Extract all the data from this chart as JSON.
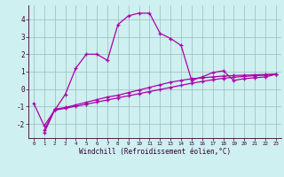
{
  "background_color": "#cff0f0",
  "grid_color": "#99bbbb",
  "line_color": "#aa00aa",
  "xlabel": "Windchill (Refroidissement éolien,°C)",
  "x_ticks": [
    0,
    1,
    2,
    3,
    4,
    5,
    6,
    7,
    8,
    9,
    10,
    11,
    12,
    13,
    14,
    15,
    16,
    17,
    18,
    19,
    20,
    21,
    22,
    23
  ],
  "y_ticks": [
    -2,
    -1,
    0,
    1,
    2,
    3,
    4
  ],
  "ylim": [
    -2.8,
    4.8
  ],
  "xlim": [
    -0.5,
    23.5
  ],
  "series1_x": [
    0,
    1,
    2,
    3,
    4,
    5,
    6,
    7,
    8,
    9,
    10,
    11,
    12,
    13,
    14,
    15,
    16,
    17,
    18,
    19,
    20,
    21,
    22,
    23
  ],
  "series1_y": [
    -0.8,
    -2.1,
    -1.2,
    -0.3,
    1.2,
    2.0,
    2.0,
    1.65,
    3.7,
    4.2,
    4.35,
    4.35,
    3.2,
    2.9,
    2.5,
    0.5,
    0.7,
    0.95,
    1.05,
    0.5,
    0.6,
    0.65,
    0.7,
    0.85
  ],
  "series2_x": [
    1,
    2,
    3,
    4,
    5,
    6,
    7,
    8,
    9,
    10,
    11,
    12,
    13,
    14,
    15,
    16,
    17,
    18,
    19,
    20,
    21,
    22,
    23
  ],
  "series2_y": [
    -2.35,
    -1.15,
    -1.05,
    -0.9,
    -0.75,
    -0.6,
    -0.45,
    -0.35,
    -0.2,
    -0.05,
    0.1,
    0.25,
    0.4,
    0.5,
    0.6,
    0.65,
    0.7,
    0.75,
    0.78,
    0.8,
    0.82,
    0.84,
    0.87
  ],
  "series3_x": [
    1,
    2,
    3,
    4,
    5,
    6,
    7,
    8,
    9,
    10,
    11,
    12,
    13,
    14,
    15,
    16,
    17,
    18,
    19,
    20,
    21,
    22,
    23
  ],
  "series3_y": [
    -2.5,
    -1.2,
    -1.1,
    -0.98,
    -0.86,
    -0.74,
    -0.62,
    -0.5,
    -0.38,
    -0.26,
    -0.14,
    -0.02,
    0.1,
    0.22,
    0.34,
    0.44,
    0.54,
    0.62,
    0.68,
    0.73,
    0.77,
    0.8,
    0.84
  ]
}
